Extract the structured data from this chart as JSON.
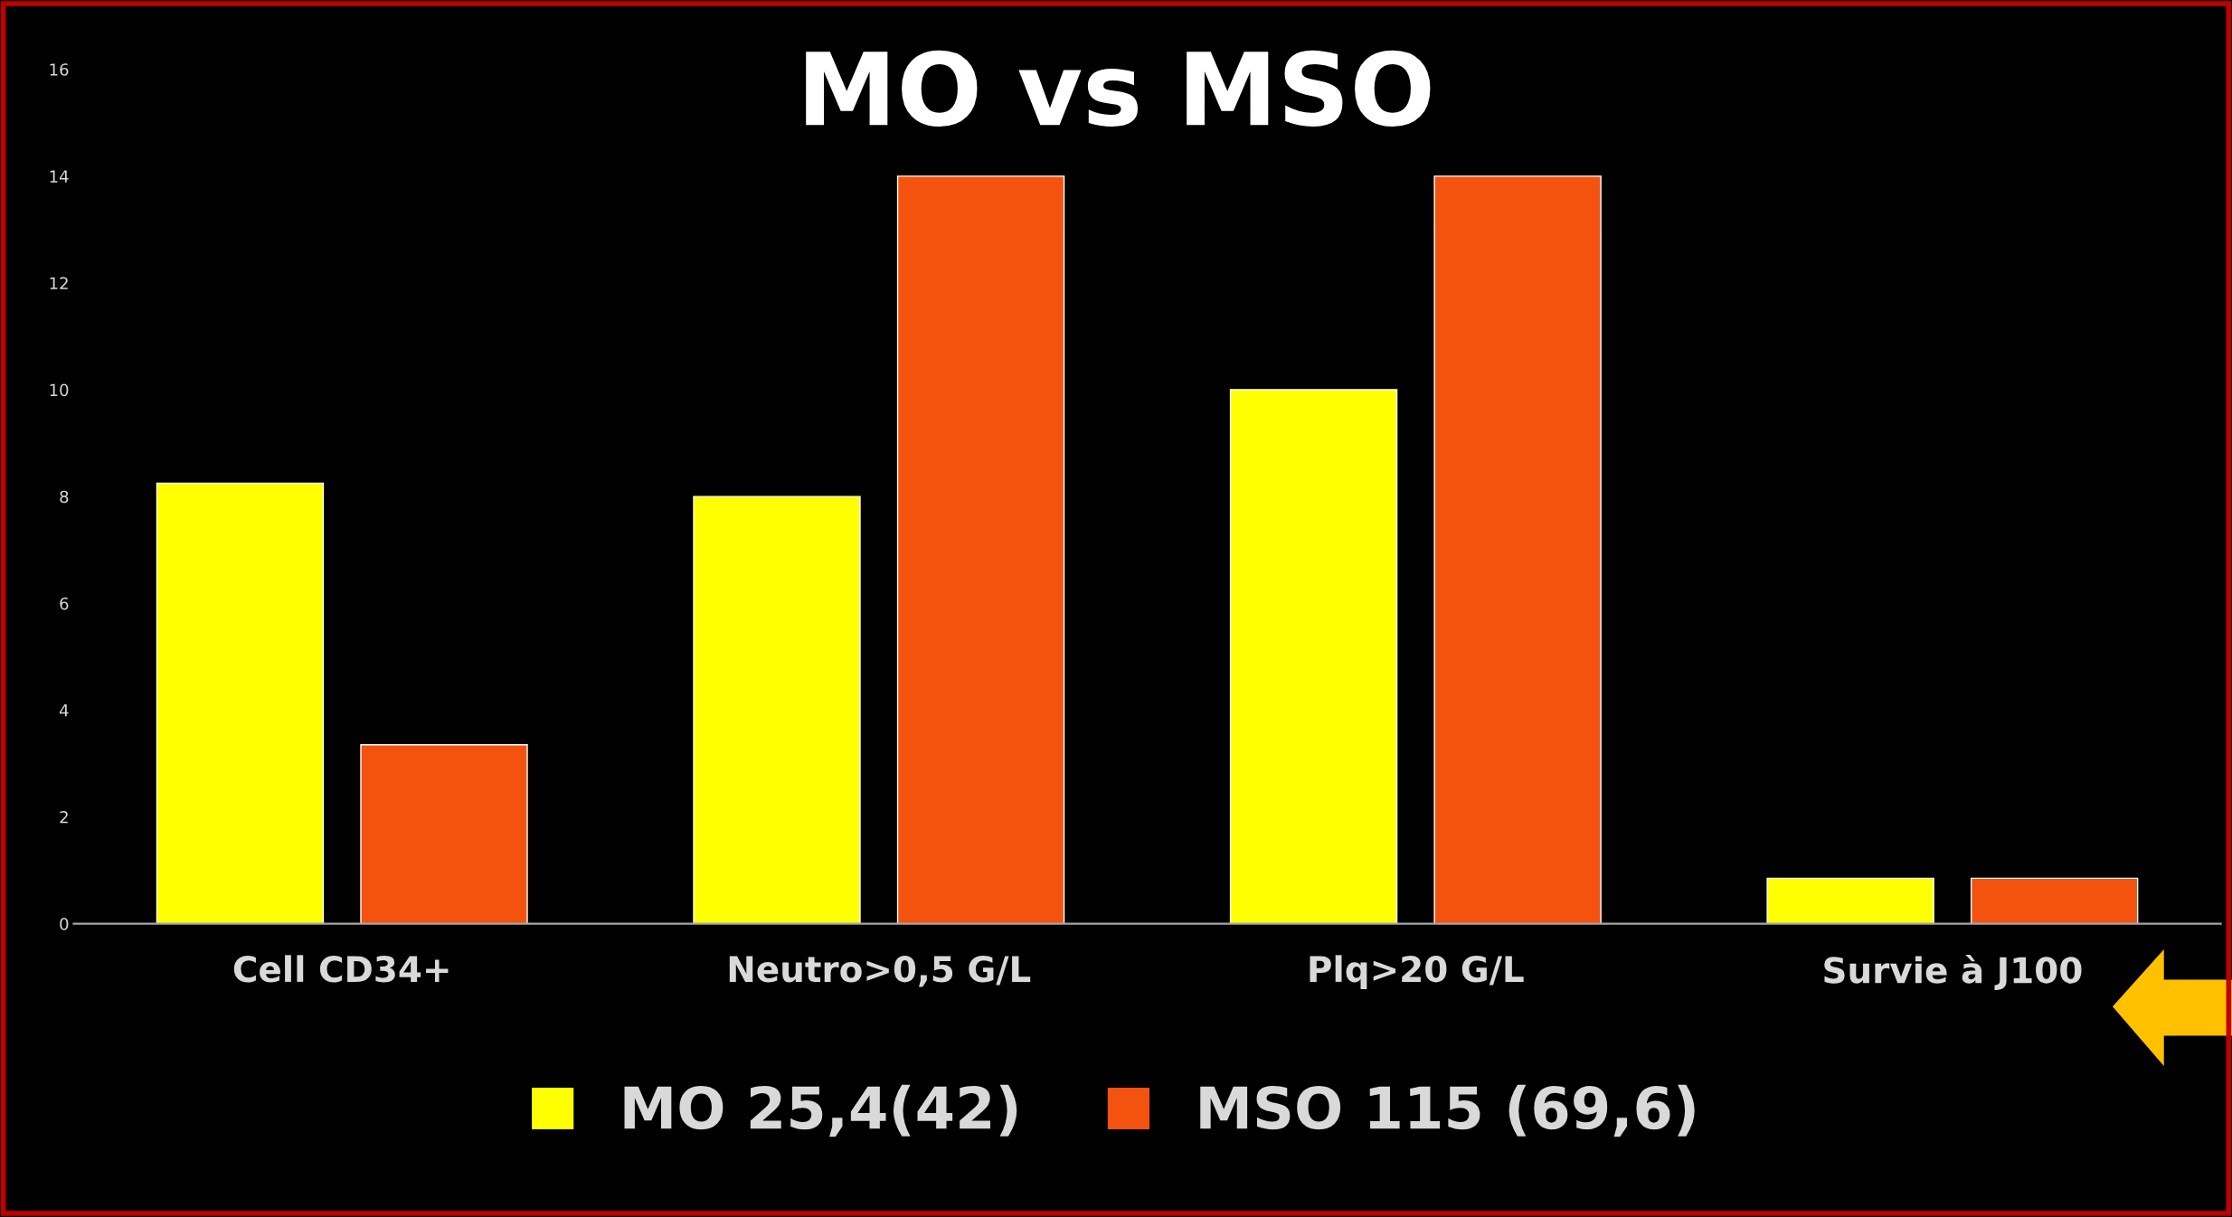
{
  "chart_data": {
    "type": "bar",
    "title": "MO vs MSO",
    "categories": [
      "Cell CD34+",
      "Neutro>0,5 G/L",
      "Plq>20 G/L",
      "Survie à J100"
    ],
    "series": [
      {
        "name": "MO 25,4(42)",
        "color": "#ffff00",
        "values": [
          8.25,
          8,
          10,
          0.85
        ]
      },
      {
        "name": "MSO 115 (69,6)",
        "color": "#f4530f",
        "values": [
          3.35,
          14,
          14,
          0.85
        ]
      }
    ],
    "ylim": [
      0,
      16
    ],
    "yticks": [
      0,
      2,
      4,
      6,
      8,
      10,
      12,
      14,
      16
    ],
    "grid": false,
    "legend": "bottom"
  }
}
